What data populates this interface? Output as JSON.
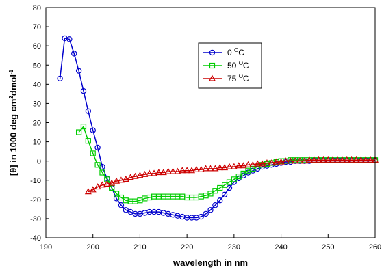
{
  "chart_data": {
    "type": "line",
    "xlabel": "wavelength in nm",
    "ylabel": {
      "parts": [
        "[θ] in 1000 deg cm",
        "2",
        "dmol",
        "-1"
      ]
    },
    "xlim": [
      190,
      260
    ],
    "ylim": [
      -40,
      80
    ],
    "x_ticks": [
      190,
      200,
      210,
      220,
      230,
      240,
      250,
      260
    ],
    "y_ticks": [
      -40,
      -30,
      -20,
      -10,
      0,
      10,
      20,
      30,
      40,
      50,
      60,
      70,
      80
    ],
    "grid": false,
    "legend_position": "upper-middle-right",
    "series": [
      {
        "name": "0 °C",
        "name_parts": [
          "0 ",
          "O",
          "C"
        ],
        "color": "#0000cc",
        "marker": "circle",
        "x": [
          193,
          194,
          195,
          196,
          197,
          198,
          199,
          200,
          201,
          202,
          203,
          204,
          205,
          206,
          207,
          208,
          209,
          210,
          211,
          212,
          213,
          214,
          215,
          216,
          217,
          218,
          219,
          220,
          221,
          222,
          223,
          224,
          225,
          226,
          227,
          228,
          229,
          230,
          231,
          232,
          233,
          234,
          235,
          236,
          237,
          238,
          239,
          240,
          241,
          242,
          243,
          244,
          245,
          246,
          247,
          248,
          249,
          250,
          251,
          252,
          253,
          254,
          255,
          256,
          257,
          258,
          259,
          260
        ],
        "y": [
          43,
          64,
          63.5,
          56,
          47,
          36.5,
          26,
          16,
          7,
          -3,
          -9,
          -14,
          -19.5,
          -23,
          -25.5,
          -26.5,
          -27.5,
          -27.5,
          -27,
          -26.5,
          -26.5,
          -26.5,
          -27,
          -27.5,
          -28,
          -28.5,
          -29,
          -29.5,
          -29.5,
          -29.5,
          -29,
          -27.5,
          -25.5,
          -23,
          -20.5,
          -17.5,
          -14,
          -11,
          -9,
          -7.5,
          -6,
          -5,
          -4,
          -3,
          -2.5,
          -2,
          -1.5,
          -1,
          -0.5,
          -0.5,
          0,
          0,
          0,
          0,
          0.5,
          0.5,
          0.5,
          0.5,
          0.5,
          0.5,
          0.5,
          0.5,
          0.5,
          0.5,
          0.5,
          0.5,
          0.5,
          0.5
        ]
      },
      {
        "name": "50 °C",
        "name_parts": [
          "50 ",
          "O",
          "C"
        ],
        "color": "#00cc00",
        "marker": "square",
        "x": [
          197,
          198,
          199,
          200,
          201,
          202,
          203,
          204,
          205,
          206,
          207,
          208,
          209,
          210,
          211,
          212,
          213,
          214,
          215,
          216,
          217,
          218,
          219,
          220,
          221,
          222,
          223,
          224,
          225,
          226,
          227,
          228,
          229,
          230,
          231,
          232,
          233,
          234,
          235,
          236,
          237,
          238,
          239,
          240,
          241,
          242,
          243,
          244,
          245,
          246,
          247,
          248,
          249,
          250,
          251,
          252,
          253,
          254,
          255,
          256,
          257,
          258,
          259,
          260
        ],
        "y": [
          15,
          18,
          10.5,
          4,
          -2,
          -6,
          -9.5,
          -14,
          -17,
          -19,
          -20.5,
          -21,
          -21,
          -20.5,
          -19.5,
          -19,
          -18.5,
          -18.5,
          -18.5,
          -18.5,
          -18.5,
          -18.5,
          -18.5,
          -19,
          -19,
          -19,
          -18.5,
          -18,
          -17,
          -15.5,
          -14,
          -12.5,
          -11,
          -9.5,
          -8,
          -6.5,
          -5,
          -4,
          -3,
          -2,
          -1.5,
          -1,
          -0.5,
          0,
          0,
          0.5,
          0.5,
          0.5,
          0.5,
          0.5,
          0.5,
          0.5,
          0.5,
          0.5,
          0.5,
          0.5,
          0.5,
          0.5,
          0.5,
          0.5,
          0.5,
          0.5,
          0.5,
          0.5
        ]
      },
      {
        "name": "75 °C",
        "name_parts": [
          "75 ",
          "O",
          "C"
        ],
        "color": "#cc0000",
        "marker": "triangle",
        "x": [
          199,
          200,
          201,
          202,
          203,
          204,
          205,
          206,
          207,
          208,
          209,
          210,
          211,
          212,
          213,
          214,
          215,
          216,
          217,
          218,
          219,
          220,
          221,
          222,
          223,
          224,
          225,
          226,
          227,
          228,
          229,
          230,
          231,
          232,
          233,
          234,
          235,
          236,
          237,
          238,
          239,
          240,
          241,
          242,
          243,
          244,
          245,
          246,
          247,
          248,
          249,
          250,
          251,
          252,
          253,
          254,
          255,
          256,
          257,
          258,
          259,
          260
        ],
        "y": [
          -16,
          -15,
          -13.5,
          -12.5,
          -12,
          -11.5,
          -10.5,
          -10,
          -9.5,
          -8.5,
          -8,
          -7.5,
          -7,
          -6.5,
          -6.5,
          -6,
          -6,
          -5.5,
          -5.5,
          -5.5,
          -5,
          -5,
          -5,
          -4.5,
          -4.5,
          -4,
          -4,
          -4,
          -3.5,
          -3.5,
          -3,
          -3,
          -2.5,
          -2.5,
          -2,
          -2,
          -1.5,
          -1.5,
          -1,
          -1,
          -0.5,
          -0.5,
          0,
          0,
          0,
          0,
          0,
          0.5,
          0.5,
          0.5,
          0.5,
          0.5,
          0.5,
          0.5,
          0.5,
          0.5,
          0.5,
          0.5,
          0.5,
          0.5,
          0.5,
          0.5
        ]
      }
    ]
  }
}
